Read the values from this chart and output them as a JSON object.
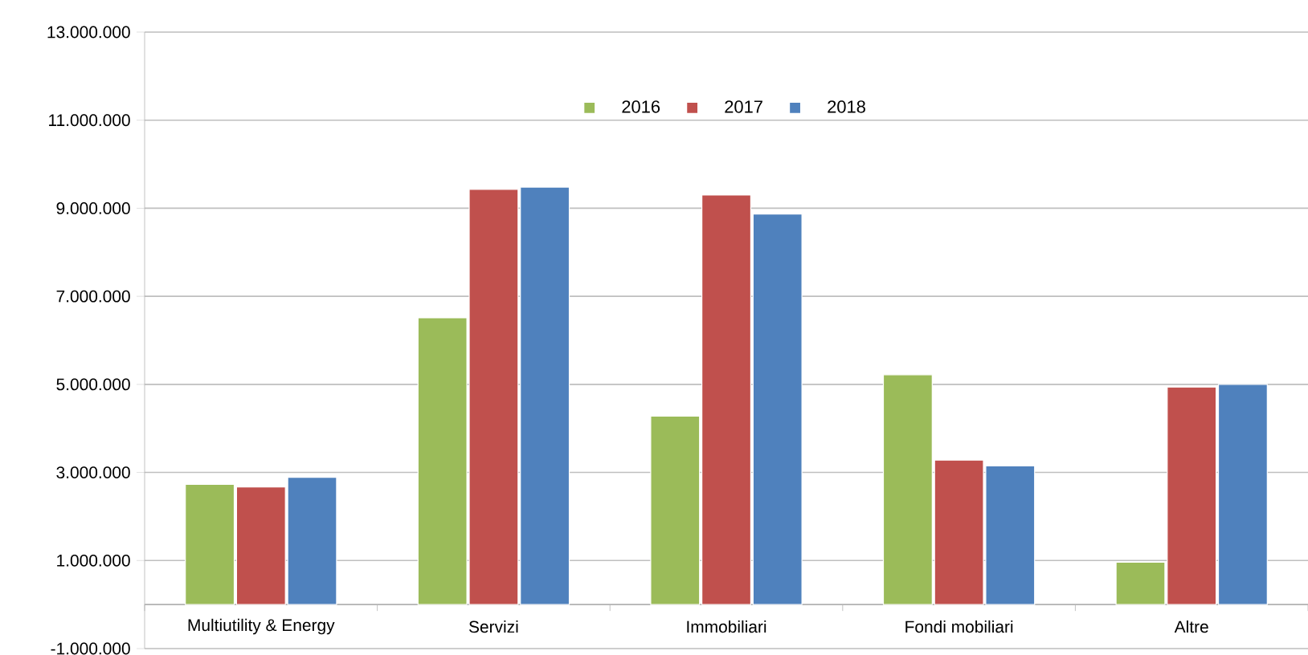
{
  "chart_data": {
    "type": "bar",
    "categories": [
      "Multiutility & Energy",
      "Servizi",
      "Immobiliari",
      "Fondi mobiliari",
      "Altre"
    ],
    "series": [
      {
        "name": "2016",
        "color": "#9bbb59",
        "values": [
          2730000,
          6510000,
          4280000,
          5220000,
          960000
        ]
      },
      {
        "name": "2017",
        "color": "#c0504d",
        "values": [
          2670000,
          9430000,
          9300000,
          3280000,
          4940000
        ]
      },
      {
        "name": "2018",
        "color": "#4f81bd",
        "values": [
          2890000,
          9480000,
          8870000,
          3150000,
          5000000
        ]
      }
    ],
    "ylim": [
      -1000000,
      13000000
    ],
    "yticks": [
      {
        "value": -1000000,
        "label": "-1.000.000"
      },
      {
        "value": 1000000,
        "label": "1.000.000"
      },
      {
        "value": 3000000,
        "label": "3.000.000"
      },
      {
        "value": 5000000,
        "label": "5.000.000"
      },
      {
        "value": 7000000,
        "label": "7.000.000"
      },
      {
        "value": 9000000,
        "label": "9.000.000"
      },
      {
        "value": 11000000,
        "label": "11.000.000"
      },
      {
        "value": 13000000,
        "label": "13.000.000"
      }
    ],
    "grid": "y",
    "legend": "top"
  }
}
